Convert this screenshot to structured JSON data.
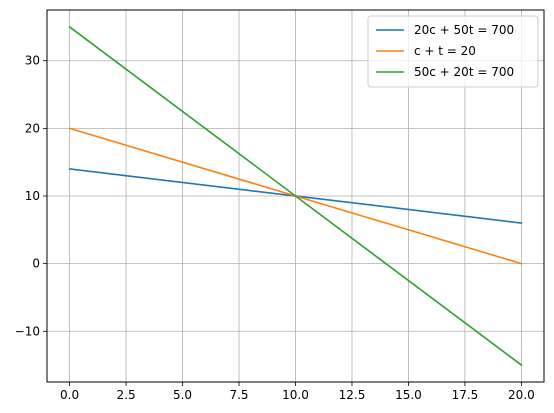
{
  "chart_data": {
    "type": "line",
    "title": "",
    "xlabel": "",
    "ylabel": "",
    "xlim": [
      -1,
      21
    ],
    "ylim": [
      -17.5,
      37.5
    ],
    "x_ticks": [
      0.0,
      2.5,
      5.0,
      7.5,
      10.0,
      12.5,
      15.0,
      17.5,
      20.0
    ],
    "x_tick_labels": [
      "0.0",
      "2.5",
      "5.0",
      "7.5",
      "10.0",
      "12.5",
      "15.0",
      "17.5",
      "20.0"
    ],
    "y_ticks": [
      -10,
      0,
      10,
      20,
      30
    ],
    "y_tick_labels": [
      "−10",
      "0",
      "10",
      "20",
      "30"
    ],
    "grid": true,
    "legend_position": "top-right",
    "series": [
      {
        "name": "20c + 50t = 700",
        "color": "#1f77b4",
        "x": [
          0,
          20
        ],
        "y": [
          14,
          6
        ]
      },
      {
        "name": "c + t = 20",
        "color": "#ff7f0e",
        "x": [
          0,
          20
        ],
        "y": [
          20,
          0
        ]
      },
      {
        "name": "50c + 20t = 700",
        "color": "#2ca02c",
        "x": [
          0,
          20
        ],
        "y": [
          35,
          -15
        ]
      }
    ]
  }
}
